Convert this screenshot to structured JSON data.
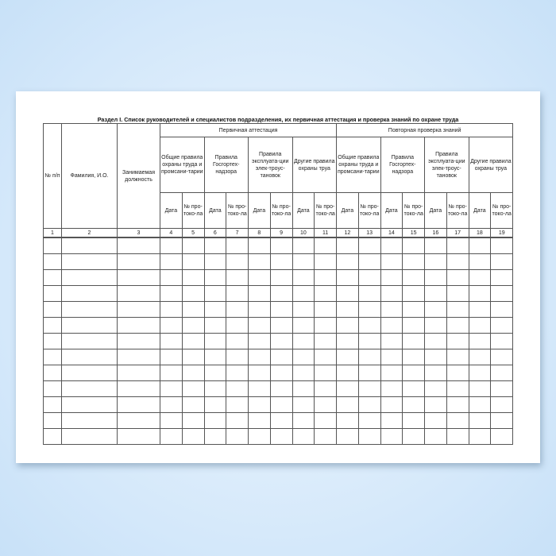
{
  "title": "Раздел I. Список руководителей и специалистов подразделения, их первичная аттестация и проверка знаний по охране труда",
  "headers": {
    "num": "№ п/п",
    "name": "Фамилия, И.О.",
    "position": "Занимаемая должность",
    "primary": "Первичная аттестация",
    "repeat": "Повторная проверка знаний",
    "groups": [
      "Общие правила охраны труда и промсани-тарии",
      "Правила Госгортех-надзора",
      "Правила эксплуата-ции элек-троус-тановок",
      "Другие правила охраны труа"
    ],
    "date": "Дата",
    "protocol": "№ про-токо-ла"
  },
  "column_numbers": [
    "1",
    "2",
    "3",
    "4",
    "5",
    "6",
    "7",
    "8",
    "9",
    "10",
    "11",
    "12",
    "13",
    "14",
    "15",
    "16",
    "17",
    "18",
    "19"
  ],
  "empty_rows": 13
}
